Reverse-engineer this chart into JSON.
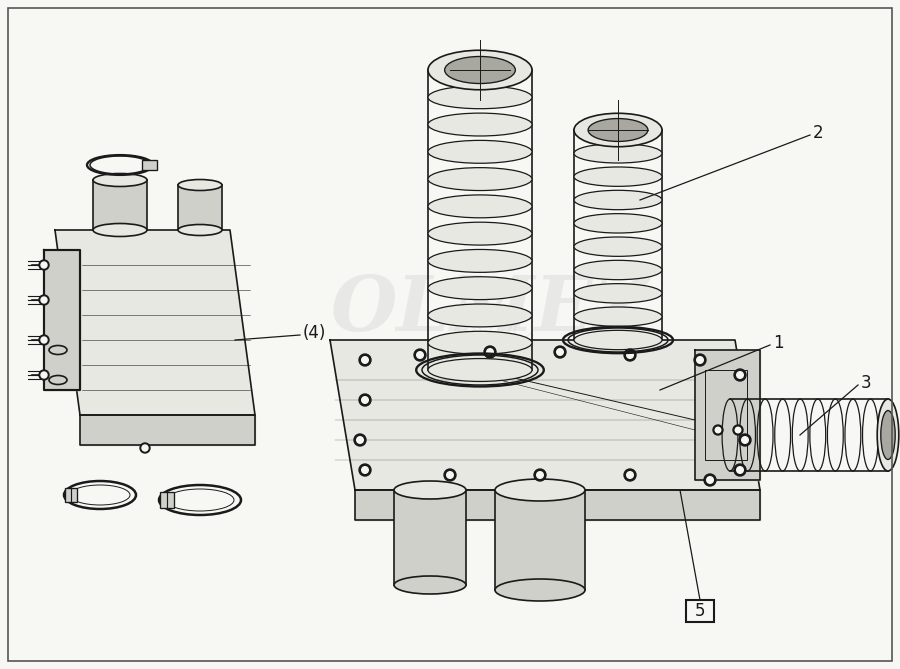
{
  "background_color": "#f7f7f3",
  "border_color": "#555555",
  "fig_width": 9.0,
  "fig_height": 6.69,
  "dpi": 100,
  "line_color": "#1a1a1a",
  "light_fill": "#e8e8e2",
  "mid_fill": "#d0d0ca",
  "dark_fill": "#a8a8a0",
  "watermark_color": "#c8c8c8",
  "watermark_alpha": 0.3
}
